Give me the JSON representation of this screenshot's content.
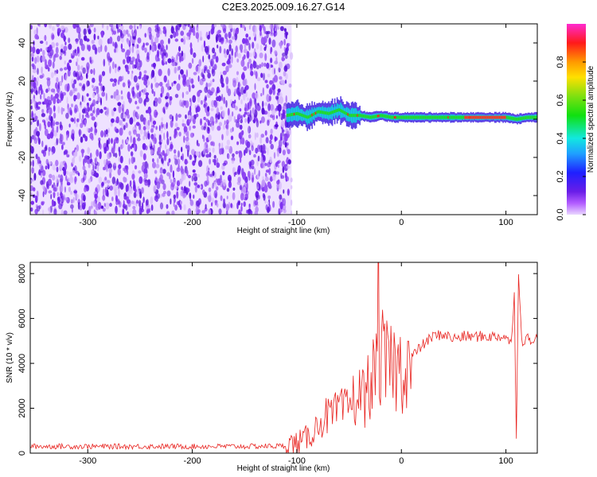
{
  "title": "C2E3.2025.009.16.27.G14",
  "colors": {
    "snr_line": "#e8231f",
    "noise_purple": "#6a1ee8",
    "axis": "#000000"
  },
  "chart_data": [
    {
      "type": "heatmap",
      "xlabel": "Height of straight line (km)",
      "ylabel": "Frequency (Hz)",
      "xlim": [
        -355,
        130
      ],
      "ylim": [
        -50,
        50
      ],
      "xticks": [
        -300,
        -200,
        -100,
        0,
        100
      ],
      "yticks": [
        -40,
        -20,
        0,
        20,
        40
      ],
      "noise_region_x": [
        -355,
        -105
      ],
      "signal_trace": {
        "x": [
          -110,
          -100,
          -90,
          -80,
          -70,
          -60,
          -50,
          -40,
          -30,
          -20,
          -10,
          0,
          20,
          40,
          60,
          80,
          100,
          110,
          120,
          130
        ],
        "y": [
          2,
          3,
          1,
          4,
          3,
          5,
          2,
          2,
          1,
          2,
          1,
          1,
          1,
          1,
          1,
          1,
          1,
          0,
          1,
          1
        ]
      },
      "colorbar": {
        "label": "Normalized spectral amplitude",
        "range": [
          0,
          1
        ],
        "ticks": [
          0.0,
          0.2,
          0.4,
          0.6,
          0.8
        ]
      }
    },
    {
      "type": "line",
      "xlabel": "Height of straight line (km)",
      "ylabel": "SNR (10 * v/v)",
      "xlim": [
        -355,
        130
      ],
      "ylim": [
        0,
        8500
      ],
      "xticks": [
        -300,
        -200,
        -100,
        0,
        100
      ],
      "yticks": [
        0,
        2000,
        4000,
        6000,
        8000
      ],
      "series": [
        {
          "x": [
            -355,
            -300,
            -250,
            -200,
            -150,
            -110,
            -95,
            -85,
            -80,
            -75,
            -70,
            -65,
            -60,
            -55,
            -50,
            -45,
            -40,
            -35,
            -30,
            -25,
            -22,
            -20,
            -18,
            -15,
            -10,
            -5,
            0,
            5,
            10,
            20,
            30,
            40,
            50,
            60,
            70,
            80,
            90,
            100,
            105,
            108,
            110,
            112,
            115,
            120,
            130
          ],
          "y": [
            300,
            300,
            300,
            300,
            300,
            320,
            500,
            900,
            1300,
            1500,
            1700,
            1600,
            2000,
            1800,
            2200,
            2400,
            2600,
            2500,
            3200,
            3400,
            6800,
            3600,
            4200,
            3800,
            4000,
            3700,
            3800,
            4000,
            4300,
            4800,
            5200,
            5300,
            5100,
            5200,
            5200,
            5200,
            5200,
            5200,
            4800,
            7200,
            500,
            8200,
            5000,
            5100,
            5100
          ]
        }
      ]
    }
  ]
}
